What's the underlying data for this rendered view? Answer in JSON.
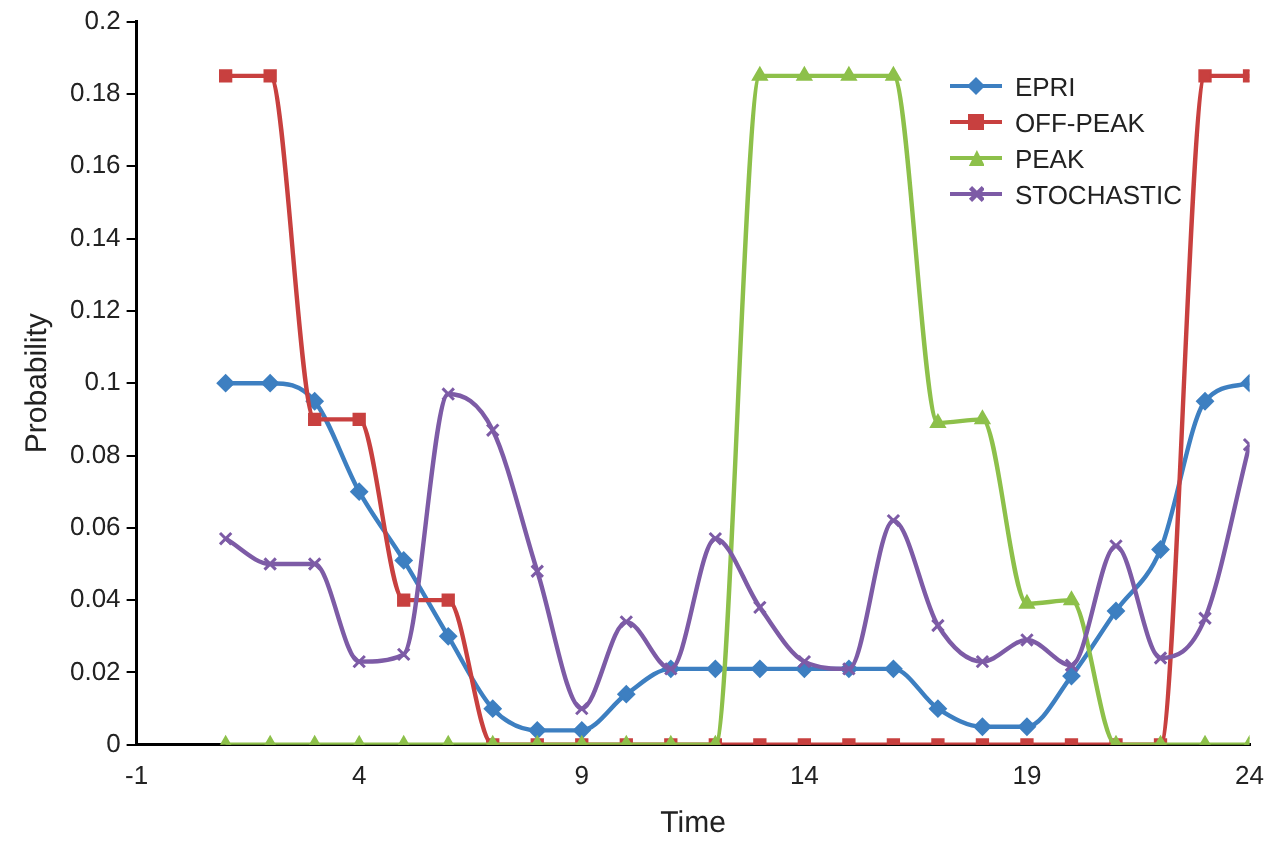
{
  "chart_data": {
    "type": "line",
    "xlabel": "Time",
    "ylabel": "Probability",
    "x": [
      1,
      2,
      3,
      4,
      5,
      6,
      7,
      8,
      9,
      10,
      11,
      12,
      13,
      14,
      15,
      16,
      17,
      18,
      19,
      20,
      21,
      22,
      23,
      24
    ],
    "xlim": [
      -1,
      24
    ],
    "xticks": [
      -1,
      4,
      9,
      14,
      19,
      24
    ],
    "ylim": [
      0,
      0.2
    ],
    "yticks": [
      0,
      0.02,
      0.04,
      0.06,
      0.08,
      0.1,
      0.12,
      0.14,
      0.16,
      0.18,
      0.2
    ],
    "grid": false,
    "legend": "top right",
    "line_style": "solid",
    "series": [
      {
        "name": "EPRI",
        "color": "#3d7fc1",
        "marker": "diamond",
        "values": [
          0.1,
          0.1,
          0.095,
          0.07,
          0.051,
          0.03,
          0.01,
          0.004,
          0.004,
          0.014,
          0.021,
          0.021,
          0.021,
          0.021,
          0.021,
          0.021,
          0.01,
          0.005,
          0.005,
          0.019,
          0.037,
          0.054,
          0.095,
          0.1
        ]
      },
      {
        "name": "OFF-PEAK",
        "color": "#c8403f",
        "marker": "square",
        "values": [
          0.185,
          0.185,
          0.09,
          0.09,
          0.04,
          0.04,
          0,
          0,
          0,
          0,
          0,
          0,
          0,
          0,
          0,
          0,
          0,
          0,
          0,
          0,
          0,
          0,
          0.185,
          0.185
        ]
      },
      {
        "name": "PEAK",
        "color": "#8dc04a",
        "marker": "triangle",
        "values": [
          0,
          0,
          0,
          0,
          0,
          0,
          0,
          0,
          0,
          0,
          0,
          0,
          0.185,
          0.185,
          0.185,
          0.185,
          0.089,
          0.09,
          0.039,
          0.04,
          0,
          0,
          0,
          0
        ]
      },
      {
        "name": "STOCHASTIC",
        "color": "#7d5ba6",
        "marker": "cross",
        "values": [
          0.057,
          0.05,
          0.05,
          0.023,
          0.025,
          0.097,
          0.087,
          0.048,
          0.01,
          0.034,
          0.021,
          0.057,
          0.038,
          0.023,
          0.021,
          0.062,
          0.033,
          0.023,
          0.029,
          0.022,
          0.055,
          0.024,
          0.035,
          0.083
        ]
      }
    ]
  }
}
